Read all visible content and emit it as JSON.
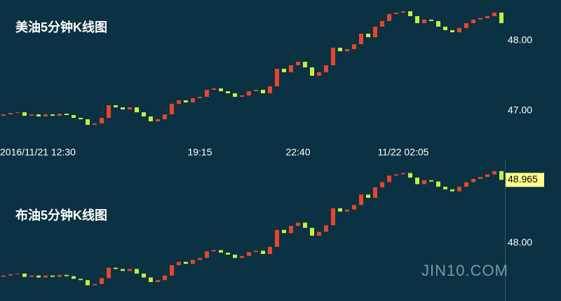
{
  "chart_data": [
    {
      "type": "candlestick",
      "title": "美油5分钟K线图",
      "categories": [
        "2016/11/21 12:30",
        null,
        null,
        null,
        null,
        null,
        null,
        null,
        null,
        null,
        null,
        null,
        null,
        null,
        null,
        null,
        null,
        null,
        null,
        null,
        null,
        null,
        null,
        null,
        null,
        null,
        null,
        null,
        "19:15",
        null,
        null,
        null,
        null,
        null,
        null,
        null,
        null,
        null,
        null,
        null,
        null,
        null,
        "22:40",
        null,
        null,
        null,
        null,
        null,
        null,
        null,
        null,
        null,
        null,
        null,
        null,
        null,
        null,
        "11/22 02:05",
        null,
        null,
        null,
        null,
        null,
        null,
        null,
        null,
        null,
        null,
        null,
        null,
        null,
        null
      ],
      "series": [
        {
          "up_color": "#e8452e",
          "down_color": "#c6ef3c",
          "open": [
            46.93,
            46.95,
            46.97,
            46.98,
            46.93,
            46.95,
            46.92,
            46.95,
            46.93,
            46.96,
            46.94,
            46.9,
            46.88,
            46.8,
            46.82,
            46.9,
            47.08,
            47.05,
            47.02,
            47.05,
            46.98,
            46.92,
            46.85,
            46.88,
            46.95,
            47.1,
            47.15,
            47.12,
            47.18,
            47.2,
            47.3,
            47.32,
            47.28,
            47.25,
            47.2,
            47.22,
            47.28,
            47.3,
            47.25,
            47.35,
            47.6,
            47.55,
            47.65,
            47.7,
            47.62,
            47.5,
            47.55,
            47.65,
            47.9,
            47.85,
            47.88,
            47.95,
            48.1,
            48.05,
            48.2,
            48.28,
            48.38,
            48.4,
            48.42,
            48.35,
            48.25,
            48.3,
            48.28,
            48.2,
            48.15,
            48.12,
            48.18,
            48.25,
            48.3,
            48.32,
            48.35,
            48.4
          ],
          "close": [
            46.95,
            46.97,
            46.98,
            46.93,
            46.95,
            46.92,
            46.95,
            46.93,
            46.96,
            46.94,
            46.9,
            46.88,
            46.8,
            46.82,
            46.9,
            47.08,
            47.05,
            47.02,
            47.05,
            46.98,
            46.92,
            46.85,
            46.88,
            46.95,
            47.1,
            47.15,
            47.12,
            47.18,
            47.2,
            47.3,
            47.32,
            47.28,
            47.25,
            47.2,
            47.22,
            47.28,
            47.3,
            47.25,
            47.35,
            47.6,
            47.55,
            47.65,
            47.7,
            47.62,
            47.5,
            47.55,
            47.65,
            47.9,
            47.85,
            47.88,
            47.95,
            48.1,
            48.05,
            48.2,
            48.28,
            48.38,
            48.4,
            48.42,
            48.35,
            48.25,
            48.3,
            48.28,
            48.2,
            48.15,
            48.12,
            48.18,
            48.25,
            48.3,
            48.32,
            48.35,
            48.4,
            48.25
          ]
        }
      ],
      "ylim": [
        46.53,
        48.58
      ],
      "yticks": [
        {
          "value": 48,
          "label": "48.00"
        },
        {
          "value": 47,
          "label": "47.00"
        }
      ],
      "grid": false
    },
    {
      "type": "candlestick",
      "title": "布油5分钟K线图",
      "series": [
        {
          "up_color": "#e8452e",
          "down_color": "#c6ef3c",
          "open": [
            47.48,
            47.5,
            47.52,
            47.53,
            47.48,
            47.5,
            47.47,
            47.5,
            47.48,
            47.51,
            47.49,
            47.45,
            47.43,
            47.35,
            47.37,
            47.46,
            47.62,
            47.6,
            47.57,
            47.6,
            47.53,
            47.47,
            47.4,
            47.43,
            47.5,
            47.66,
            47.71,
            47.68,
            47.74,
            47.77,
            47.87,
            47.89,
            47.85,
            47.82,
            47.77,
            47.8,
            47.86,
            47.88,
            47.83,
            47.94,
            48.2,
            48.15,
            48.26,
            48.31,
            48.23,
            48.11,
            48.17,
            48.27,
            48.53,
            48.48,
            48.51,
            48.58,
            48.74,
            48.69,
            48.85,
            48.93,
            49.03,
            49.05,
            49.07,
            49.0,
            48.9,
            48.96,
            48.94,
            48.86,
            48.82,
            48.79,
            48.86,
            48.93,
            48.98,
            49.01,
            49.05,
            49.1
          ],
          "close": [
            47.5,
            47.52,
            47.53,
            47.48,
            47.5,
            47.47,
            47.5,
            47.48,
            47.51,
            47.49,
            47.45,
            47.43,
            47.35,
            47.37,
            47.46,
            47.62,
            47.6,
            47.57,
            47.6,
            47.53,
            47.47,
            47.4,
            47.43,
            47.5,
            47.66,
            47.71,
            47.68,
            47.74,
            47.77,
            47.87,
            47.89,
            47.85,
            47.82,
            47.77,
            47.8,
            47.86,
            47.88,
            47.83,
            47.94,
            48.2,
            48.15,
            48.26,
            48.31,
            48.23,
            48.11,
            48.17,
            48.27,
            48.53,
            48.48,
            48.51,
            48.58,
            48.74,
            48.69,
            48.85,
            48.93,
            49.03,
            49.05,
            49.07,
            49.0,
            48.9,
            48.96,
            48.94,
            48.86,
            48.82,
            48.79,
            48.86,
            48.93,
            48.98,
            49.01,
            49.05,
            49.1,
            48.965
          ]
        }
      ],
      "ylim": [
        47.11,
        49.27
      ],
      "yticks": [
        {
          "value": 48,
          "label": "48.00"
        }
      ],
      "grid": false,
      "watermark": "JIN10.COM"
    }
  ]
}
